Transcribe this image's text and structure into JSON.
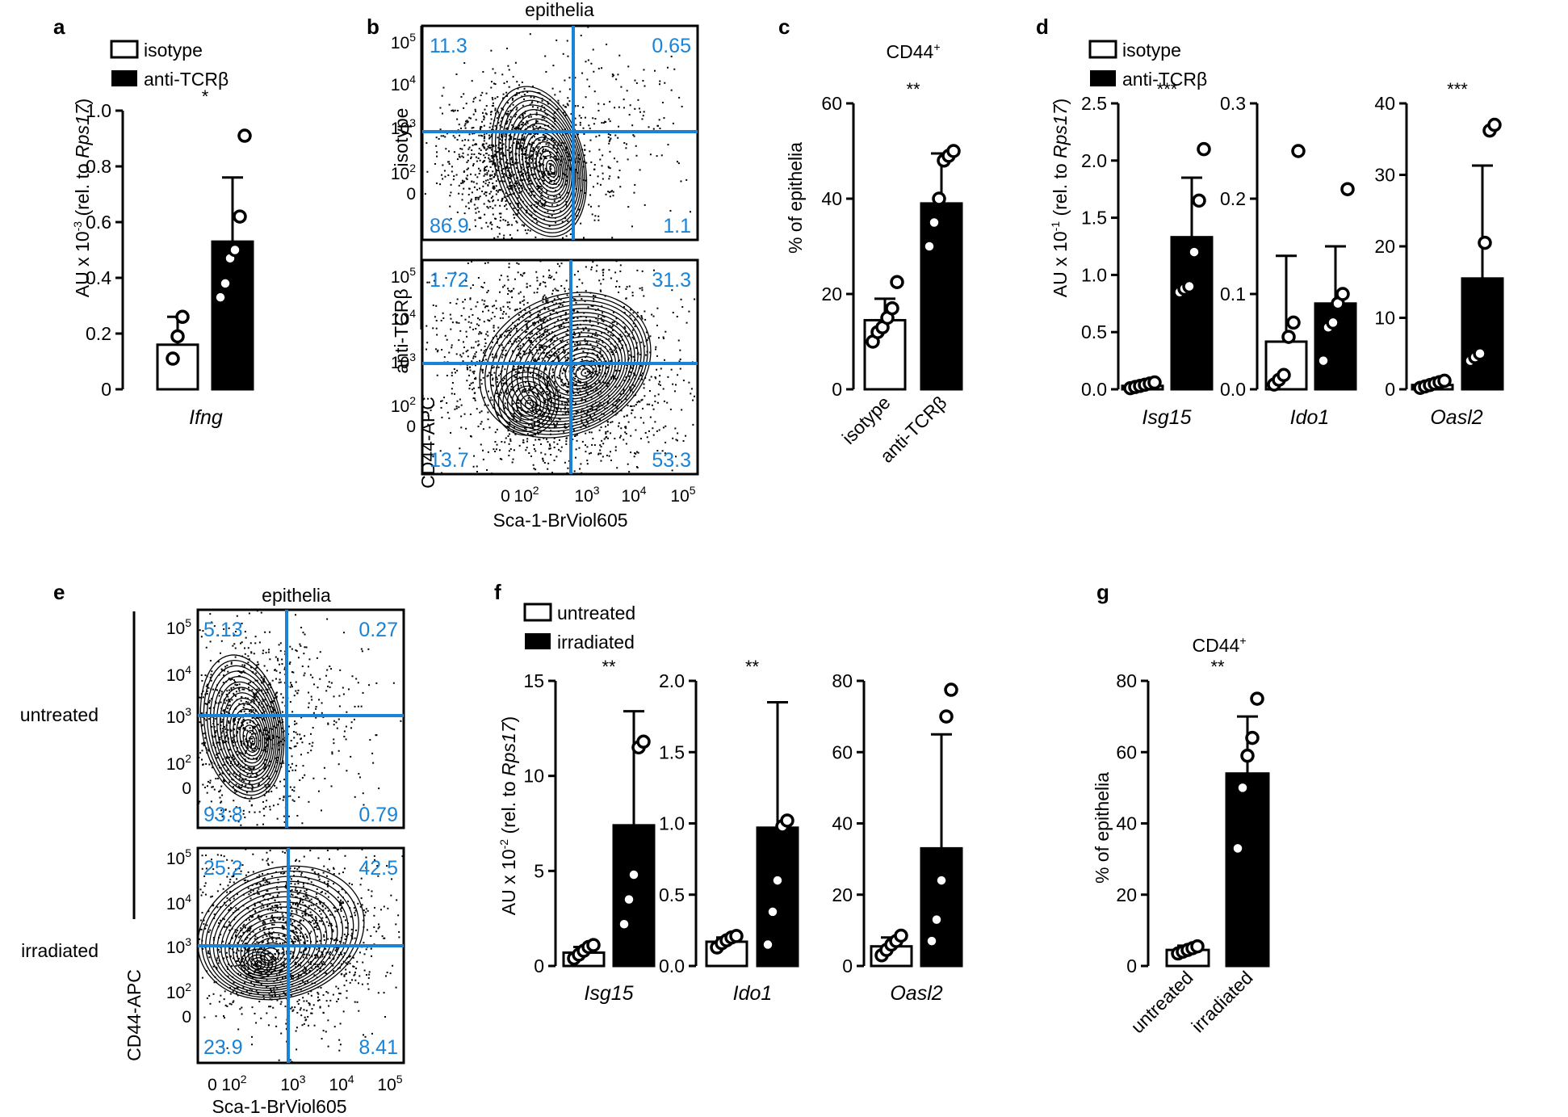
{
  "colors": {
    "quadrant": "#1a83d6",
    "bar_filled": "#000000",
    "bar_open": "#ffffff"
  },
  "panels": {
    "a": "a",
    "b": "b",
    "c": "c",
    "d": "d",
    "e": "e",
    "f": "f",
    "g": "g"
  },
  "legend_ab": {
    "open": "isotype",
    "filled": "anti-TCRβ"
  },
  "legend_f": {
    "open": "untreated",
    "filled": "irradiated"
  },
  "labels": {
    "epithelia": "epithelia",
    "cd44_apc": "CD44-APC",
    "sca1": "Sca-1-BrViol605",
    "cd44_plus": "CD44",
    "cd44_sup": "+",
    "pct_epithelia": "% of epithelia",
    "au_a_pre": "AU x 10",
    "au_a_exp": "-3",
    "au_d_exp": "-1",
    "au_f_exp": "-2",
    "au_mid": " (rel. to ",
    "au_gene": "Rps17",
    "au_end": ")"
  },
  "row_labels": {
    "b_top": "isotype",
    "b_bottom": "anti-TCRβ",
    "e_top": "untreated",
    "e_bottom": "irradiated"
  },
  "flow_ticks": {
    "y": [
      "10",
      "10",
      "10",
      "10",
      "0"
    ],
    "y_exp": [
      "5",
      "4",
      "3",
      "2",
      ""
    ],
    "x": [
      "0",
      "10",
      "10",
      "10",
      "10"
    ],
    "x_exp": [
      "",
      "2",
      "3",
      "4",
      "5"
    ]
  },
  "quadrants": {
    "b_top": {
      "ul": "11.3",
      "ur": "0.65",
      "ll": "86.9",
      "lr": "1.1"
    },
    "b_bottom": {
      "ul": "1.72",
      "ur": "31.3",
      "ll": "13.7",
      "lr": "53.3"
    },
    "e_top": {
      "ul": "5.13",
      "ur": "0.27",
      "ll": "93.8",
      "lr": "0.79"
    },
    "e_bottom": {
      "ul": "25.2",
      "ur": "42.5",
      "ll": "23.9",
      "lr": "8.41"
    }
  },
  "chart_data": [
    {
      "id": "a",
      "type": "bar",
      "title": "",
      "xlabel": "Ifng",
      "ylabel": "AU x 10^-3 (rel. to Rps17)",
      "ylim": [
        0,
        1.0
      ],
      "yticks": [
        "0",
        "0.2",
        "0.4",
        "0.6",
        "0.8",
        "1.0"
      ],
      "categories": [
        "isotype",
        "anti-TCRβ"
      ],
      "means": [
        0.16,
        0.53
      ],
      "errs": [
        0.1,
        0.23
      ],
      "points": [
        [
          0.11,
          0.19,
          0.26
        ],
        [
          0.33,
          0.38,
          0.47,
          0.5,
          0.62,
          0.91
        ]
      ],
      "sig": "*"
    },
    {
      "id": "c",
      "type": "bar",
      "title": "CD44+",
      "ylabel": "% of epithelia",
      "ylim": [
        0,
        60
      ],
      "yticks": [
        "0",
        "20",
        "40",
        "60"
      ],
      "categories": [
        "isotype",
        "anti-TCRβ"
      ],
      "means": [
        14.5,
        39
      ],
      "errs": [
        4.5,
        10.5
      ],
      "points": [
        [
          10,
          12,
          13,
          15,
          17,
          22.5
        ],
        [
          30,
          35,
          40,
          48,
          49,
          50
        ]
      ],
      "sig": "**"
    },
    {
      "id": "d_isg15",
      "type": "bar",
      "xlabel": "Isg15",
      "ylabel": "AU x 10^-1 (rel. to Rps17)",
      "ylim": [
        0,
        2.5
      ],
      "yticks": [
        "0.0",
        "0.5",
        "1.0",
        "1.5",
        "2.0",
        "2.5"
      ],
      "categories": [
        "isotype",
        "anti-TCRβ"
      ],
      "means": [
        0.03,
        1.33
      ],
      "errs": [
        0.02,
        0.52
      ],
      "points": [
        [
          0.01,
          0.02,
          0.03,
          0.04,
          0.05,
          0.06
        ],
        [
          0.85,
          0.88,
          0.9,
          1.2,
          1.65,
          2.1
        ]
      ],
      "sig": "***"
    },
    {
      "id": "d_ido1",
      "type": "bar",
      "xlabel": "Ido1",
      "ylim": [
        0,
        0.3
      ],
      "yticks": [
        "0.0",
        "0.1",
        "0.2",
        "0.3"
      ],
      "categories": [
        "isotype",
        "anti-TCRβ"
      ],
      "means": [
        0.05,
        0.09
      ],
      "errs": [
        0.09,
        0.06
      ],
      "points": [
        [
          0.005,
          0.01,
          0.015,
          0.055,
          0.07,
          0.25
        ],
        [
          0.03,
          0.065,
          0.07,
          0.09,
          0.1,
          0.21
        ]
      ],
      "sig": ""
    },
    {
      "id": "d_oasl2",
      "type": "bar",
      "xlabel": "Oasl2",
      "ylim": [
        0,
        40
      ],
      "yticks": [
        "0",
        "10",
        "20",
        "30",
        "40"
      ],
      "categories": [
        "isotype",
        "anti-TCRβ"
      ],
      "means": [
        0.6,
        15.5
      ],
      "errs": [
        0.4,
        15.8
      ],
      "points": [
        [
          0.2,
          0.4,
          0.6,
          0.8,
          1.0,
          1.2
        ],
        [
          4,
          4.5,
          5,
          20.5,
          36.2,
          37
        ]
      ],
      "sig": "***"
    },
    {
      "id": "f_isg15",
      "type": "bar",
      "xlabel": "Isg15",
      "ylabel": "AU x 10^-2 (rel. to Rps17)",
      "ylim": [
        0,
        15
      ],
      "yticks": [
        "0",
        "5",
        "10",
        "15"
      ],
      "categories": [
        "untreated",
        "irradiated"
      ],
      "means": [
        0.7,
        7.4
      ],
      "errs": [
        0.3,
        6.0
      ],
      "points": [
        [
          0.4,
          0.6,
          0.8,
          1.0,
          1.1
        ],
        [
          2.2,
          3.5,
          4.8,
          11.5,
          11.8
        ]
      ],
      "sig": "**"
    },
    {
      "id": "f_ido1",
      "type": "bar",
      "xlabel": "Ido1",
      "ylim": [
        0,
        2.0
      ],
      "yticks": [
        "0.0",
        "0.5",
        "1.0",
        "1.5",
        "2.0"
      ],
      "categories": [
        "untreated",
        "irradiated"
      ],
      "means": [
        0.17,
        0.97
      ],
      "errs": [
        0.03,
        0.88
      ],
      "points": [
        [
          0.13,
          0.16,
          0.18,
          0.2,
          0.21
        ],
        [
          0.15,
          0.38,
          0.6,
          0.98,
          1.02
        ]
      ],
      "sig": "**"
    },
    {
      "id": "f_oasl2",
      "type": "bar",
      "xlabel": "Oasl2",
      "ylim": [
        0,
        80
      ],
      "yticks": [
        "0",
        "20",
        "40",
        "60",
        "80"
      ],
      "categories": [
        "untreated",
        "irradiated"
      ],
      "means": [
        5.5,
        33
      ],
      "errs": [
        2.5,
        32
      ],
      "points": [
        [
          3,
          4.5,
          6,
          7,
          8.5
        ],
        [
          7,
          13,
          24,
          70,
          77.5
        ]
      ],
      "sig": ""
    },
    {
      "id": "g",
      "type": "bar",
      "title": "CD44+",
      "ylabel": "% of epithelia",
      "ylim": [
        0,
        80
      ],
      "yticks": [
        "0",
        "20",
        "40",
        "60",
        "80"
      ],
      "categories": [
        "untreated",
        "irradiated"
      ],
      "means": [
        4.5,
        54
      ],
      "errs": [
        1.2,
        16
      ],
      "points": [
        [
          3.5,
          4,
          4.5,
          5,
          5.5
        ],
        [
          33,
          50,
          59,
          64,
          75
        ]
      ],
      "sig": "**"
    }
  ]
}
